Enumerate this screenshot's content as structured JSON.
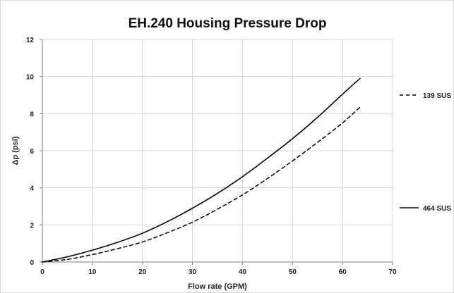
{
  "chart_data": {
    "type": "line",
    "title": "EH.240 Housing Pressure Drop",
    "xlabel": "Flow rate (GPM)",
    "ylabel": "Δp (psi)",
    "xlim": [
      0,
      70
    ],
    "ylim": [
      0,
      12
    ],
    "x_ticks": [
      "0",
      "10",
      "20",
      "30",
      "40",
      "50",
      "60",
      "70"
    ],
    "y_ticks": [
      "0",
      "2",
      "4",
      "6",
      "8",
      "10",
      "12"
    ],
    "grid": true,
    "legend": "right",
    "series": [
      {
        "name": "139 SUS",
        "line_style": "dashed",
        "color": "#000000",
        "x": [
          0,
          5,
          10,
          15,
          20,
          25,
          30,
          35,
          40,
          45,
          50,
          55,
          60,
          63.5
        ],
        "y": [
          0,
          0.14,
          0.4,
          0.72,
          1.08,
          1.58,
          2.15,
          2.85,
          3.62,
          4.5,
          5.45,
          6.45,
          7.5,
          8.35
        ]
      },
      {
        "name": "464 SUS",
        "line_style": "solid",
        "color": "#000000",
        "x": [
          0,
          5,
          10,
          15,
          20,
          25,
          30,
          35,
          40,
          45,
          50,
          55,
          60,
          63.5
        ],
        "y": [
          0,
          0.28,
          0.64,
          1.06,
          1.55,
          2.18,
          2.9,
          3.7,
          4.6,
          5.6,
          6.65,
          7.8,
          9.05,
          9.9
        ]
      }
    ]
  }
}
